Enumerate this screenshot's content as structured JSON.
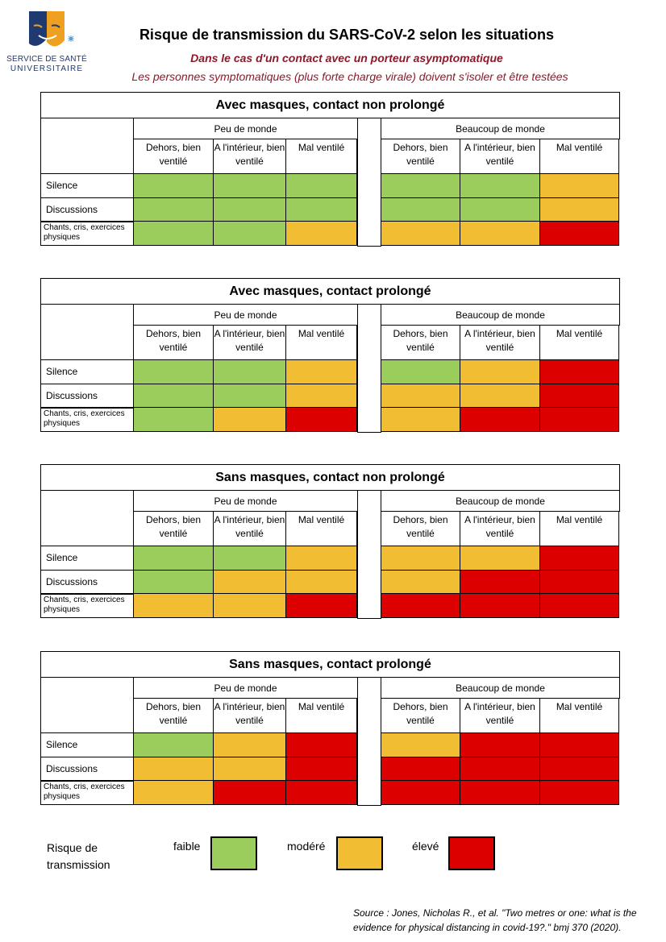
{
  "header": {
    "logo_line1": "SERVICE DE SANTÉ",
    "logo_line2": "UNIVERSITAIRE",
    "title": "Risque de transmission du SARS-CoV-2 selon les situations",
    "subtitle1": "Dans le cas d'un contact avec un porteur asymptomatique",
    "subtitle2": "Les personnes symptomatiques (plus forte charge virale) doivent s'isoler et être testées"
  },
  "colors": {
    "faible": "#9bcd5c",
    "modere": "#f0bd33",
    "eleve": "#dc0000"
  },
  "groups": [
    "Peu de monde",
    "Beaucoup de monde"
  ],
  "columns": [
    "Dehors, bien ventilé",
    "A l'intérieur, bien ventilé",
    "Mal ventilé"
  ],
  "rows": [
    "Silence",
    "Discussions",
    "Chants, cris, exercices physiques"
  ],
  "tables": [
    {
      "title": "Avec masques, contact non prolongé",
      "risk": [
        [
          "faible",
          "faible",
          "faible",
          "faible",
          "faible",
          "modere"
        ],
        [
          "faible",
          "faible",
          "faible",
          "faible",
          "faible",
          "modere"
        ],
        [
          "faible",
          "faible",
          "modere",
          "modere",
          "modere",
          "eleve"
        ]
      ]
    },
    {
      "title": "Avec masques, contact prolongé",
      "risk": [
        [
          "faible",
          "faible",
          "modere",
          "faible",
          "modere",
          "eleve"
        ],
        [
          "faible",
          "faible",
          "modere",
          "modere",
          "modere",
          "eleve"
        ],
        [
          "faible",
          "modere",
          "eleve",
          "modere",
          "eleve",
          "eleve"
        ]
      ]
    },
    {
      "title": "Sans masques, contact non prolongé",
      "risk": [
        [
          "faible",
          "faible",
          "modere",
          "modere",
          "modere",
          "eleve"
        ],
        [
          "faible",
          "modere",
          "modere",
          "modere",
          "eleve",
          "eleve"
        ],
        [
          "modere",
          "modere",
          "eleve",
          "eleve",
          "eleve",
          "eleve"
        ]
      ]
    },
    {
      "title": "Sans masques, contact prolongé",
      "risk": [
        [
          "faible",
          "modere",
          "eleve",
          "modere",
          "eleve",
          "eleve"
        ],
        [
          "modere",
          "modere",
          "eleve",
          "eleve",
          "eleve",
          "eleve"
        ],
        [
          "modere",
          "eleve",
          "eleve",
          "eleve",
          "eleve",
          "eleve"
        ]
      ]
    }
  ],
  "legend": {
    "label_line1": "Risque de",
    "label_line2": "transmission",
    "faible": "faible",
    "modere": "modéré",
    "eleve": "élevé"
  },
  "source": "Source : Jones, Nicholas R., et al. \"Two metres or one: what is the evidence for physical distancing in covid-19?.\" bmj 370 (2020)."
}
